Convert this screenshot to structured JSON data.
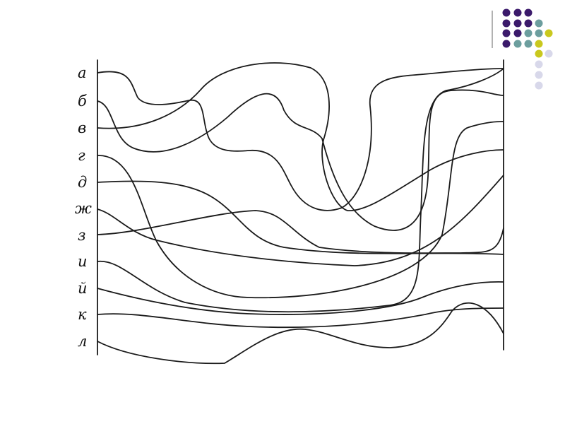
{
  "diagram": {
    "labels": [
      "а",
      "б",
      "в",
      "г",
      "д",
      "ж",
      "з",
      "и",
      "й",
      "к",
      "л"
    ]
  },
  "decoration": {
    "dot_colors": {
      "purple": "#3b1a6b",
      "teal": "#6c9e9e",
      "yellow": "#c9c81e",
      "lavender": "#d8d8ea"
    }
  }
}
